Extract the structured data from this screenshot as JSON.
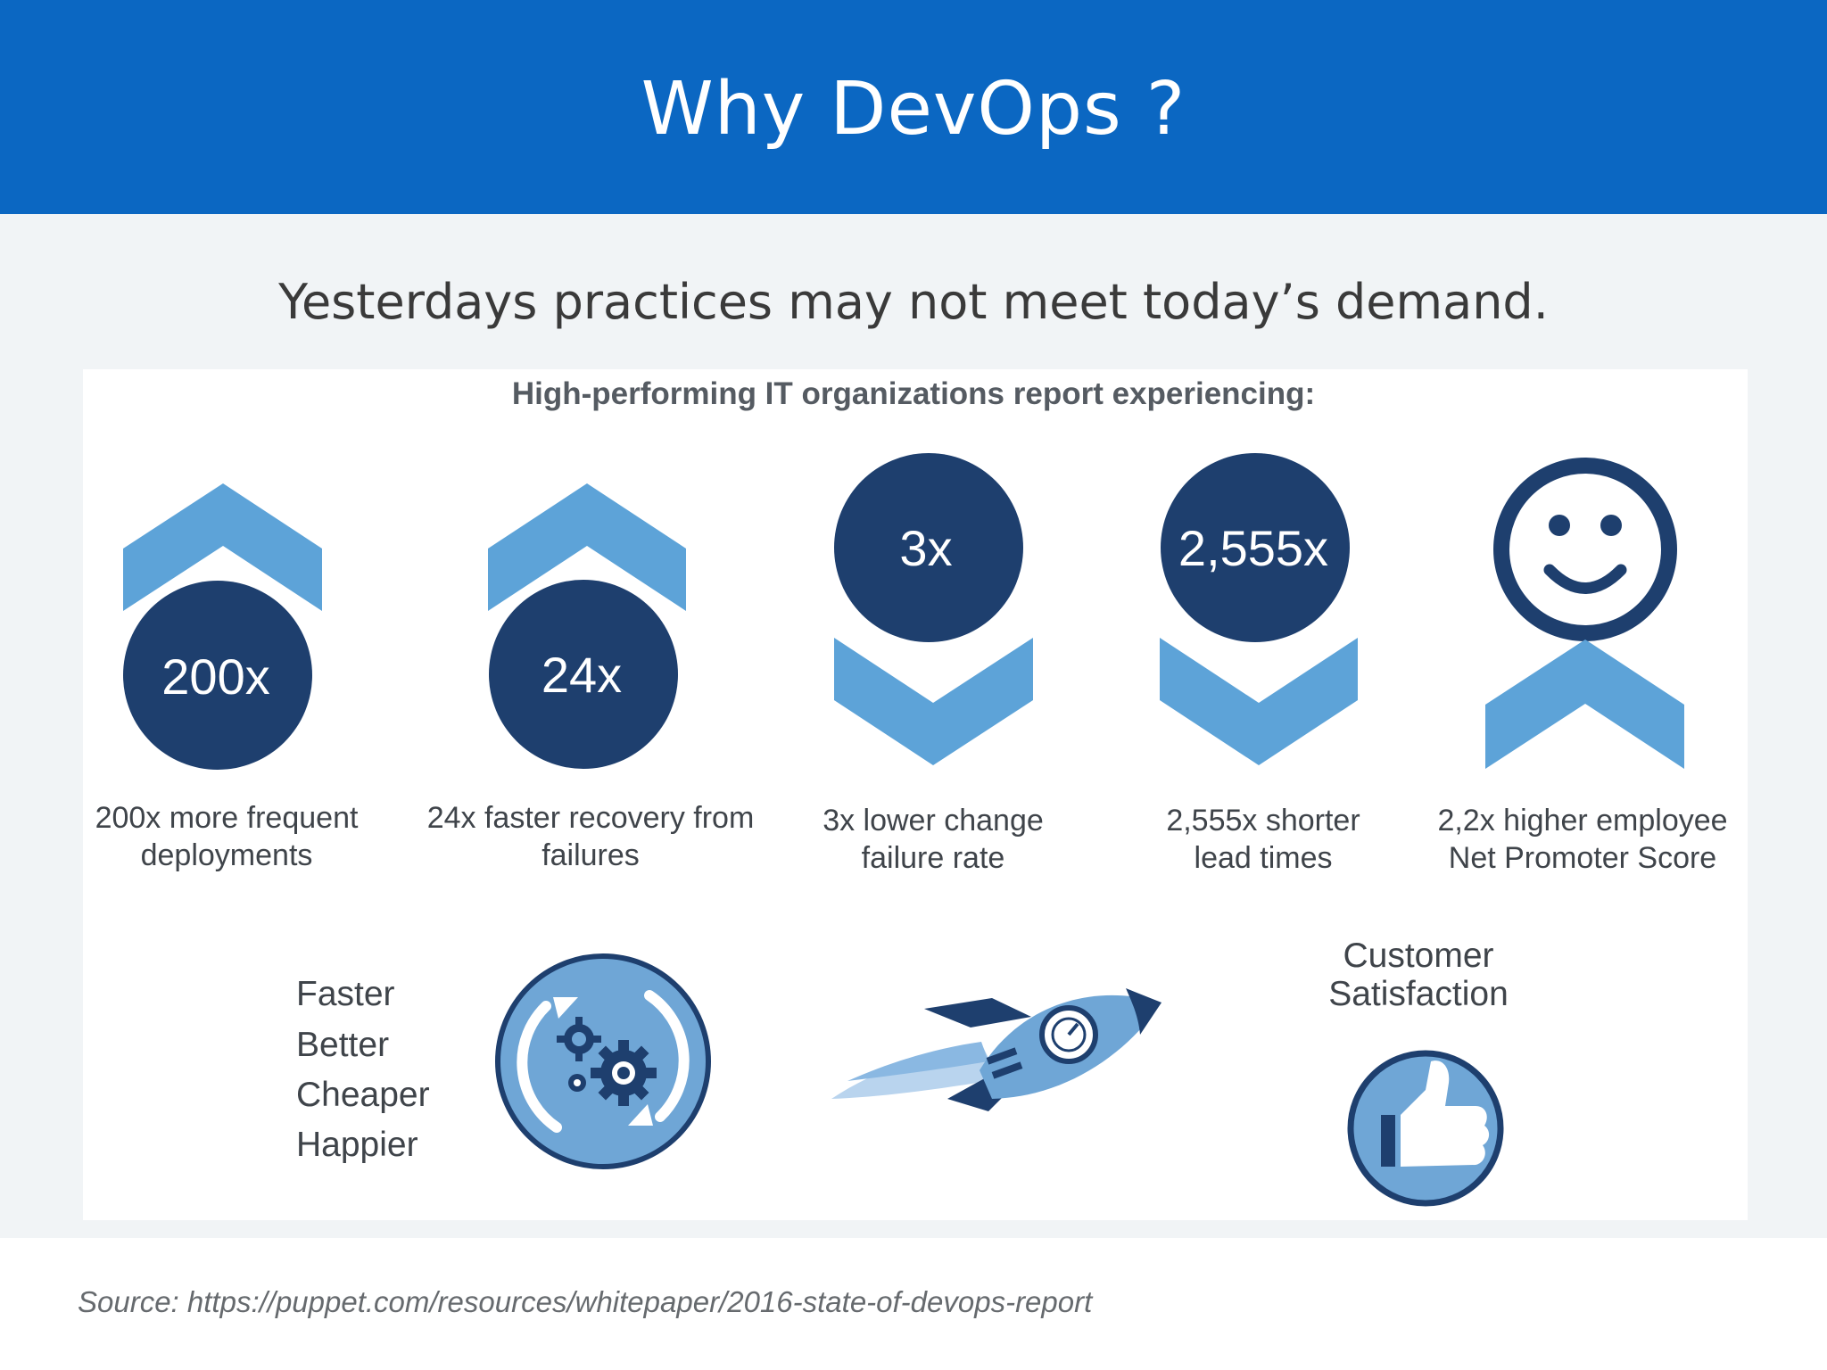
{
  "slide": {
    "title": "Why DevOps ?",
    "subtitle": "Yesterdays practices may not meet today’s demand.",
    "panel_heading": "High-performing IT organizations  report experiencing:",
    "source": "Source: https://puppet.com/resources/whitepaper/2016-state-of-devops-report"
  },
  "stats": [
    {
      "value": "200x",
      "caption_line1": "200x more frequent",
      "caption_line2": "deployments",
      "trend": "up"
    },
    {
      "value": "24x",
      "caption_line1": "24x faster recovery from",
      "caption_line2": "failures",
      "trend": "up"
    },
    {
      "value": "3x",
      "caption_line1": "3x lower change",
      "caption_line2": "failure rate",
      "trend": "down"
    },
    {
      "value": "2,555x",
      "caption_line1": "2,555x shorter",
      "caption_line2": "lead times",
      "trend": "down"
    },
    {
      "value": "",
      "caption_line1": "2,2x higher employee",
      "caption_line2": "Net Promoter Score",
      "trend": "up",
      "icon": "smiley-icon"
    }
  ],
  "benefits": [
    "Faster",
    "Better",
    "Cheaper",
    "Happier"
  ],
  "customer": {
    "line1": "Customer",
    "line2": "Satisfaction"
  },
  "icons": [
    "gears-cycle-icon",
    "rocket-icon",
    "thumbs-up-icon",
    "smiley-icon",
    "chevron-up-icon",
    "chevron-down-icon"
  ],
  "colors": {
    "header_blue": "#0b67c2",
    "navy": "#1e3f6e",
    "light_blue": "#5da3d8",
    "body_bg": "#f1f4f6"
  }
}
